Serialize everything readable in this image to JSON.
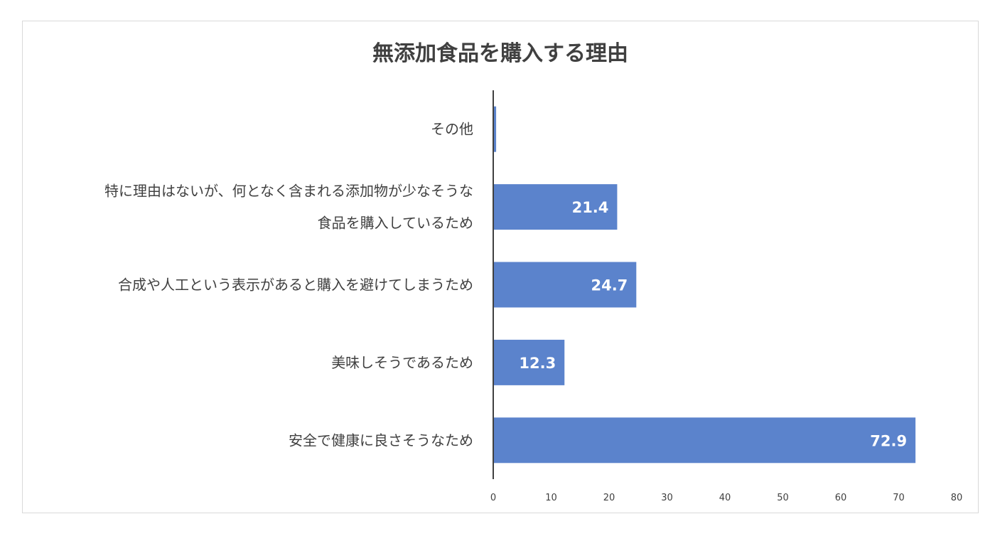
{
  "chart_data": {
    "type": "bar",
    "orientation": "horizontal",
    "title": "無添加食品を購入する理由",
    "categories": [
      [
        "その他"
      ],
      [
        "特に理由はないが、何となく含まれる添加物が少なそうな",
        "食品を購入しているため"
      ],
      [
        "合成や人工という表示があると購入を避けてしまうため"
      ],
      [
        "美味しそうであるため"
      ],
      [
        "安全で健康に良さそうなため"
      ]
    ],
    "values": [
      0.5,
      21.4,
      24.7,
      12.3,
      72.9
    ],
    "data_labels": [
      "",
      "21.4",
      "24.7",
      "12.3",
      "72.9"
    ],
    "xlim": [
      0,
      80
    ],
    "xticks": [
      0,
      10,
      20,
      30,
      40,
      50,
      60,
      70,
      80
    ],
    "grid": false,
    "legend": "none",
    "bar_color": "#5b83cc",
    "axis_color": "#404040"
  }
}
